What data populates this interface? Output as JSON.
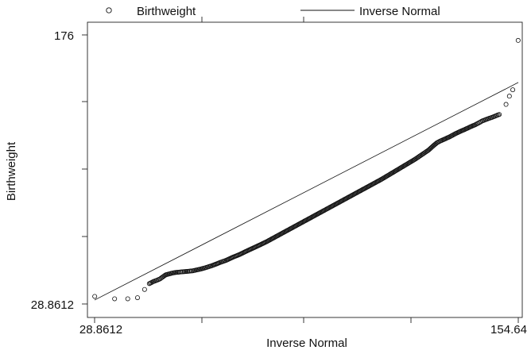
{
  "chart_data": {
    "type": "scatter",
    "xlabel": "Inverse Normal",
    "ylabel": "Birthweight",
    "xlim": [
      28.8612,
      154.64
    ],
    "ylim": [
      28.8612,
      176
    ],
    "x_tick_labels": [
      "28.8612",
      "154.64"
    ],
    "y_tick_labels": [
      "28.8612",
      "176"
    ],
    "legend_position": "top",
    "series": [
      {
        "name": "Birthweight",
        "mark": "hollow-circle",
        "points": [
          [
            28.9,
            33.0
          ],
          [
            34.8,
            31.7
          ],
          [
            38.7,
            31.7
          ],
          [
            41.6,
            32.3
          ],
          [
            43.7,
            36.8
          ],
          [
            45.1,
            40.0
          ],
          [
            46.3,
            41.1
          ],
          [
            47.3,
            41.8
          ],
          [
            48.3,
            42.6
          ],
          [
            49.2,
            43.8
          ],
          [
            50.0,
            44.8
          ],
          [
            51.0,
            45.3
          ],
          [
            52.0,
            45.8
          ],
          [
            53.0,
            46.1
          ],
          [
            54.0,
            46.3
          ],
          [
            55.2,
            46.5
          ],
          [
            56.5,
            46.7
          ],
          [
            58.0,
            47.0
          ],
          [
            60.0,
            47.8
          ],
          [
            62.0,
            48.8
          ],
          [
            64.0,
            50.0
          ],
          [
            66.0,
            51.5
          ],
          [
            68.0,
            52.8
          ],
          [
            70.0,
            54.5
          ],
          [
            72.0,
            56.0
          ],
          [
            74.0,
            57.8
          ],
          [
            76.0,
            59.5
          ],
          [
            78.0,
            61.2
          ],
          [
            80.0,
            63.0
          ],
          [
            82.0,
            65.0
          ],
          [
            84.0,
            67.0
          ],
          [
            86.0,
            69.0
          ],
          [
            88.0,
            71.0
          ],
          [
            90.0,
            73.0
          ],
          [
            92.0,
            75.0
          ],
          [
            94.0,
            77.0
          ],
          [
            96.0,
            79.0
          ],
          [
            98.0,
            81.0
          ],
          [
            100.0,
            83.0
          ],
          [
            102.0,
            85.0
          ],
          [
            104.0,
            87.0
          ],
          [
            106.0,
            89.0
          ],
          [
            108.0,
            91.0
          ],
          [
            110.0,
            93.0
          ],
          [
            112.0,
            95.0
          ],
          [
            114.0,
            97.0
          ],
          [
            116.0,
            99.2
          ],
          [
            118.0,
            101.4
          ],
          [
            120.0,
            103.6
          ],
          [
            122.0,
            105.8
          ],
          [
            124.0,
            108.0
          ],
          [
            126.0,
            110.5
          ],
          [
            128.0,
            113.0
          ],
          [
            129.5,
            115.5
          ],
          [
            130.5,
            117.0
          ],
          [
            131.5,
            118.0
          ],
          [
            133.0,
            119.2
          ],
          [
            134.5,
            120.5
          ],
          [
            136.0,
            122.0
          ],
          [
            137.5,
            123.3
          ],
          [
            139.0,
            124.5
          ],
          [
            140.5,
            125.8
          ],
          [
            142.0,
            127.0
          ],
          [
            143.0,
            128.0
          ],
          [
            144.0,
            129.0
          ],
          [
            145.0,
            129.7
          ],
          [
            146.0,
            130.4
          ],
          [
            147.0,
            131.0
          ],
          [
            148.0,
            131.8
          ],
          [
            149.0,
            132.5
          ],
          [
            151.0,
            138.0
          ],
          [
            152.0,
            142.5
          ],
          [
            153.0,
            146.0
          ],
          [
            154.6,
            173.0
          ]
        ]
      },
      {
        "name": "Inverse Normal",
        "mark": "line",
        "points": [
          [
            28.8612,
            31.0
          ],
          [
            154.64,
            150.0
          ]
        ]
      }
    ]
  },
  "legend": {
    "items": [
      {
        "label": "Birthweight",
        "symbol": "hollow-circle-icon"
      },
      {
        "label": "Inverse Normal",
        "symbol": "line-icon"
      }
    ]
  },
  "style": {
    "ink": "#111111",
    "axis_color": "#222222",
    "background": "#ffffff"
  }
}
